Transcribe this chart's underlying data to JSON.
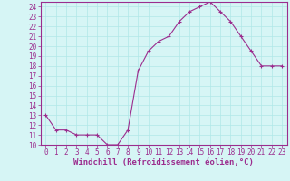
{
  "x": [
    0,
    1,
    2,
    3,
    4,
    5,
    6,
    7,
    8,
    9,
    10,
    11,
    12,
    13,
    14,
    15,
    16,
    17,
    18,
    19,
    20,
    21,
    22,
    23
  ],
  "y": [
    13,
    11.5,
    11.5,
    11,
    11,
    11,
    10,
    10,
    11.5,
    17.5,
    19.5,
    20.5,
    21,
    22.5,
    23.5,
    24,
    24.5,
    23.5,
    22.5,
    21,
    19.5,
    18,
    18,
    18
  ],
  "line_color": "#9b2d8e",
  "marker": "+",
  "marker_color": "#9b2d8e",
  "bg_color": "#d6f5f5",
  "grid_color": "#b0e8e8",
  "xlabel": "Windchill (Refroidissement éolien,°C)",
  "xlabel_color": "#9b2d8e",
  "ylim": [
    10,
    24.5
  ],
  "xlim": [
    -0.5,
    23.5
  ],
  "yticks": [
    10,
    11,
    12,
    13,
    14,
    15,
    16,
    17,
    18,
    19,
    20,
    21,
    22,
    23,
    24
  ],
  "xticks": [
    0,
    1,
    2,
    3,
    4,
    5,
    6,
    7,
    8,
    9,
    10,
    11,
    12,
    13,
    14,
    15,
    16,
    17,
    18,
    19,
    20,
    21,
    22,
    23
  ],
  "tick_color": "#9b2d8e",
  "tick_fontsize": 5.5,
  "xlabel_fontsize": 6.5,
  "border_color": "#9b2d8e",
  "axis_line_color": "#9b2d8e"
}
